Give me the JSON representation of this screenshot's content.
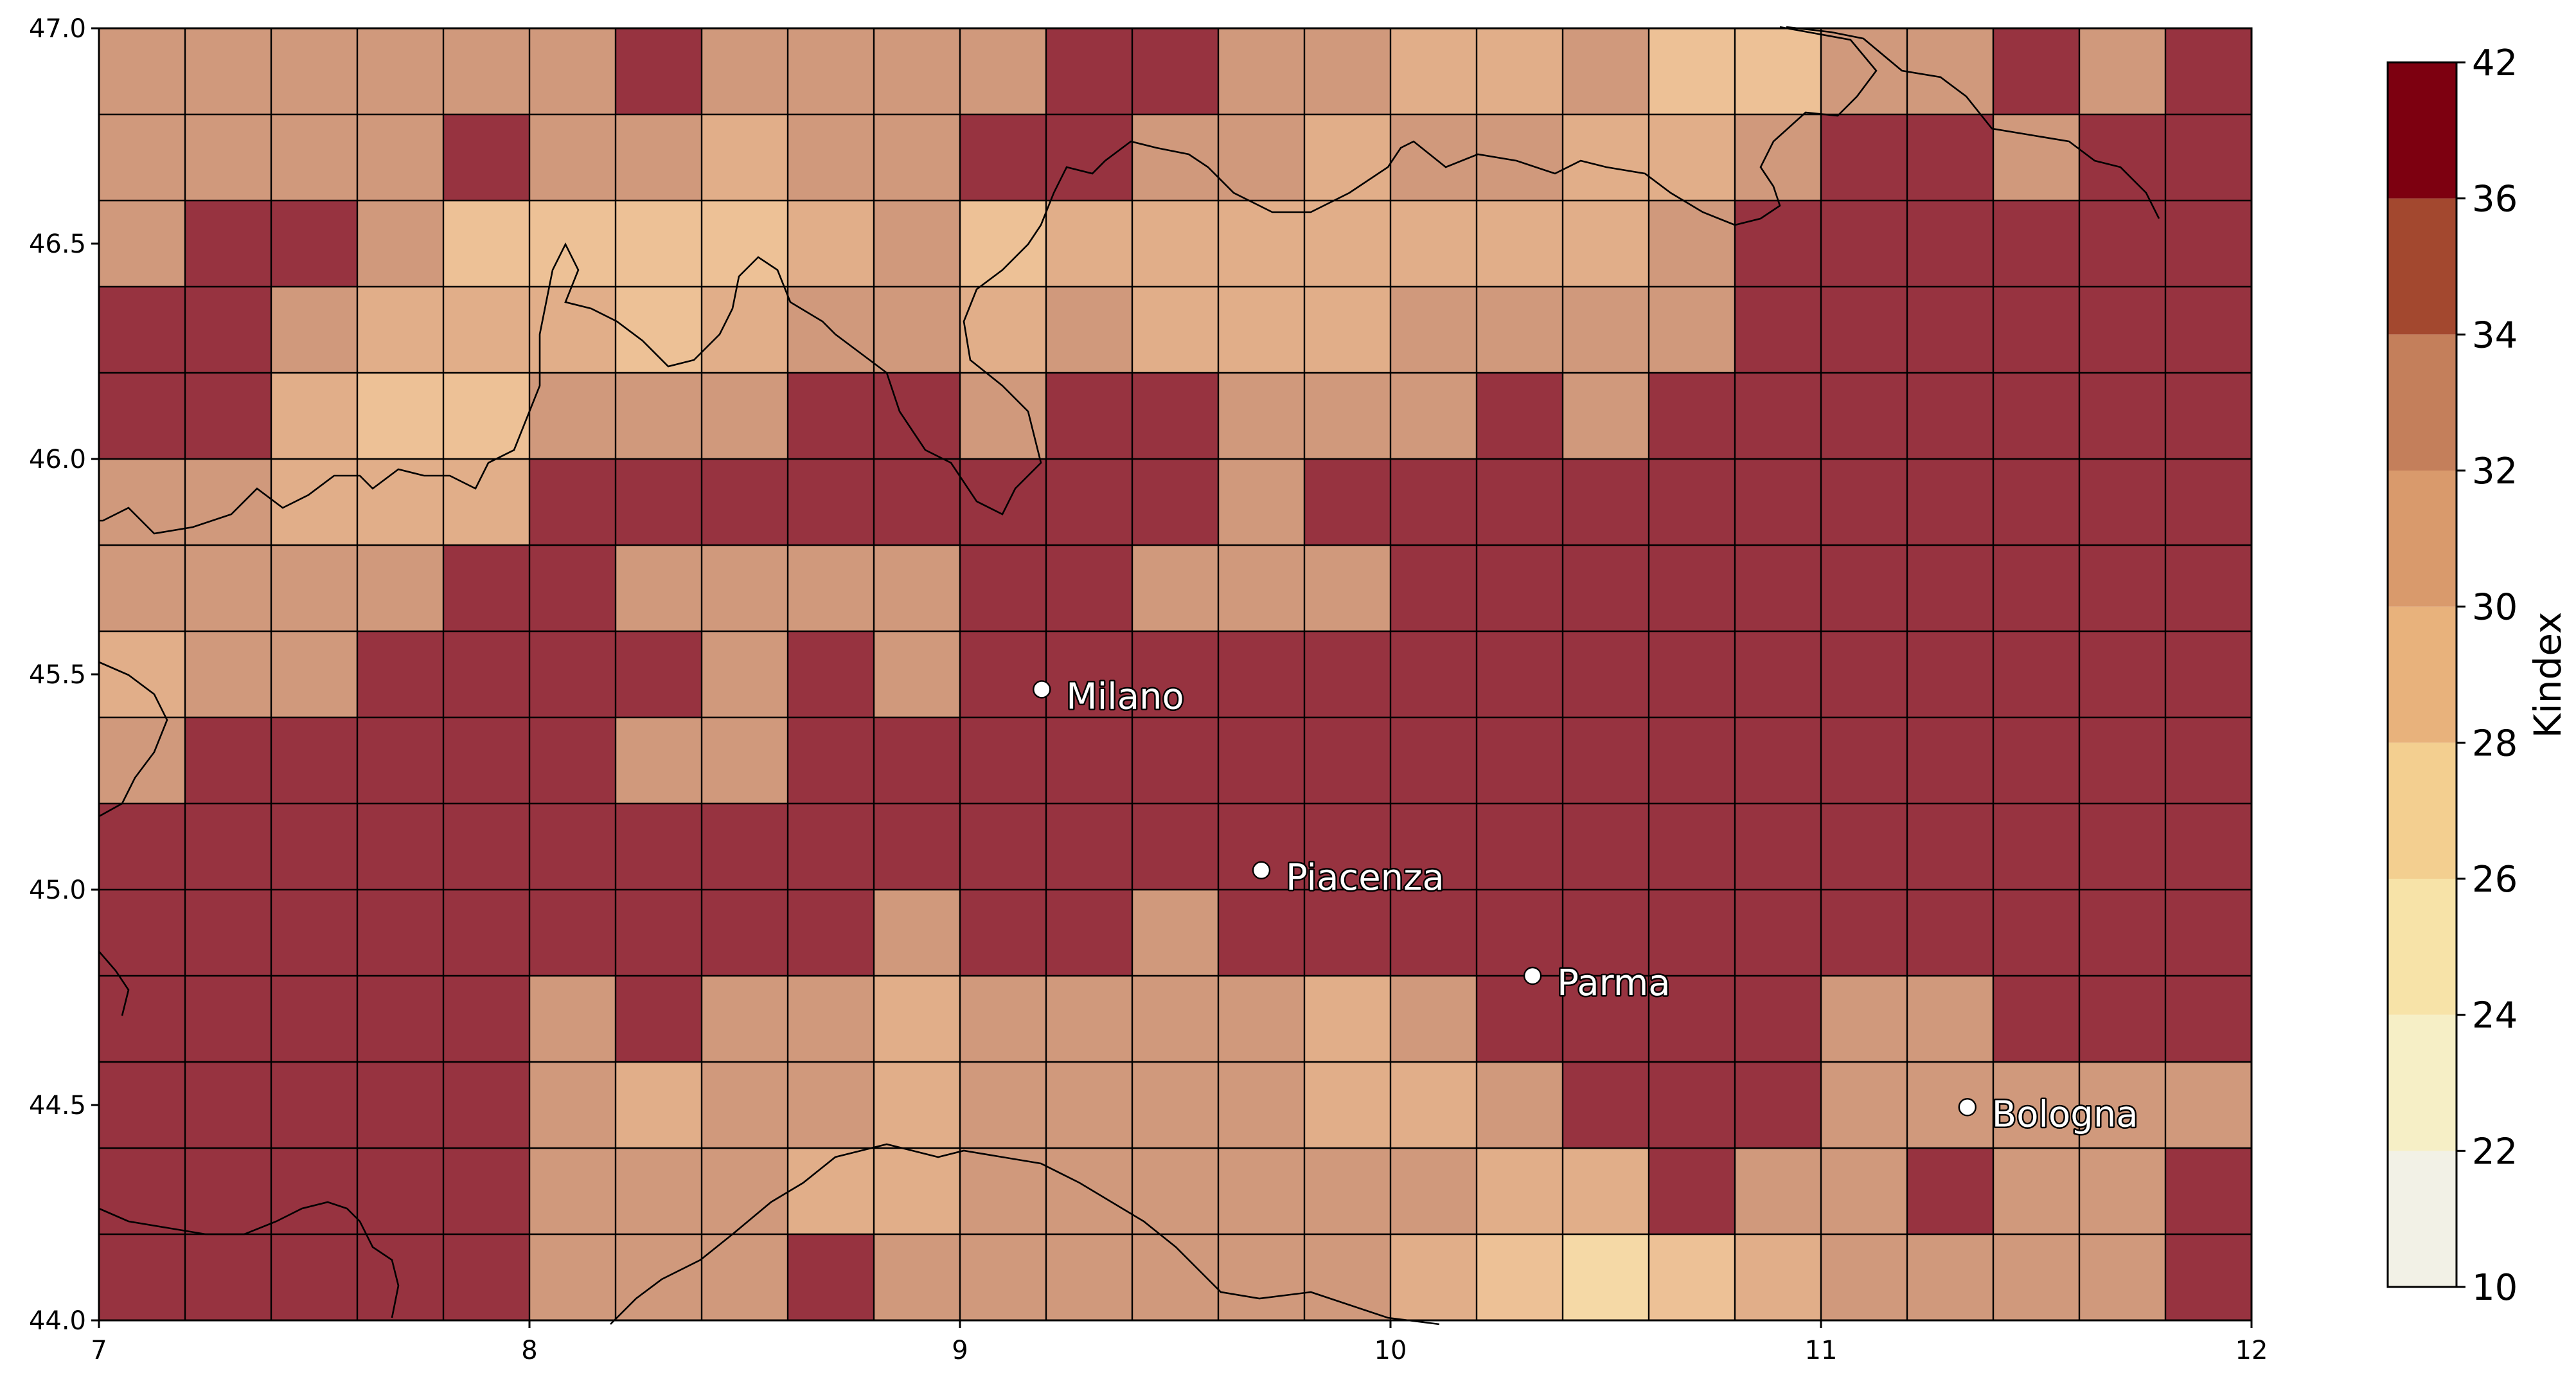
{
  "chart_data": {
    "type": "heatmap",
    "title": "",
    "xlabel": "",
    "ylabel": "",
    "xlim": [
      7,
      12
    ],
    "ylim": [
      44,
      47
    ],
    "cell_size_deg": 0.2,
    "x_ticks": [
      "7",
      "8",
      "9",
      "10",
      "11",
      "12"
    ],
    "y_ticks": [
      "44.0",
      "44.5",
      "45.0",
      "45.5",
      "46.0",
      "46.5",
      "47.0"
    ],
    "grid_rows_top_to_bottom": [
      [
        33,
        33,
        33,
        33,
        33,
        33,
        37,
        33,
        33,
        33,
        33,
        37,
        37,
        33,
        33,
        31,
        31,
        33,
        29,
        29,
        33,
        33,
        37,
        33,
        37
      ],
      [
        33,
        33,
        33,
        33,
        37,
        33,
        33,
        31,
        33,
        33,
        37,
        37,
        33,
        33,
        31,
        33,
        33,
        31,
        31,
        33,
        37,
        37,
        33,
        37,
        37
      ],
      [
        33,
        37,
        37,
        33,
        29,
        29,
        29,
        29,
        31,
        33,
        29,
        31,
        31,
        31,
        31,
        31,
        31,
        31,
        33,
        37,
        37,
        37,
        37,
        37,
        37
      ],
      [
        37,
        37,
        33,
        31,
        31,
        31,
        29,
        31,
        33,
        33,
        31,
        33,
        31,
        31,
        31,
        33,
        33,
        33,
        33,
        37,
        37,
        37,
        37,
        37,
        37
      ],
      [
        37,
        37,
        31,
        29,
        29,
        33,
        33,
        33,
        37,
        37,
        33,
        37,
        37,
        33,
        33,
        33,
        37,
        33,
        37,
        37,
        37,
        37,
        37,
        37,
        37
      ],
      [
        33,
        33,
        31,
        31,
        31,
        37,
        37,
        37,
        37,
        37,
        37,
        37,
        37,
        33,
        37,
        37,
        37,
        37,
        37,
        37,
        37,
        37,
        37,
        37,
        37
      ],
      [
        33,
        33,
        33,
        33,
        37,
        37,
        33,
        33,
        33,
        33,
        37,
        37,
        33,
        33,
        33,
        37,
        37,
        37,
        37,
        37,
        37,
        37,
        37,
        37,
        37
      ],
      [
        31,
        33,
        33,
        37,
        37,
        37,
        37,
        33,
        37,
        33,
        37,
        37,
        37,
        37,
        37,
        37,
        37,
        37,
        37,
        37,
        37,
        37,
        37,
        37,
        37
      ],
      [
        33,
        37,
        37,
        37,
        37,
        37,
        33,
        33,
        37,
        37,
        37,
        37,
        37,
        37,
        37,
        37,
        37,
        37,
        37,
        37,
        37,
        37,
        37,
        37,
        37
      ],
      [
        37,
        37,
        37,
        37,
        37,
        37,
        37,
        37,
        37,
        37,
        37,
        37,
        37,
        37,
        37,
        37,
        37,
        37,
        37,
        37,
        37,
        37,
        37,
        37,
        37
      ],
      [
        37,
        37,
        37,
        37,
        37,
        37,
        37,
        37,
        37,
        33,
        37,
        37,
        33,
        37,
        37,
        37,
        37,
        37,
        37,
        37,
        37,
        37,
        37,
        37,
        37
      ],
      [
        37,
        37,
        37,
        37,
        37,
        33,
        37,
        33,
        33,
        31,
        33,
        33,
        33,
        33,
        31,
        33,
        37,
        37,
        37,
        37,
        33,
        33,
        37,
        37,
        37
      ],
      [
        37,
        37,
        37,
        37,
        37,
        33,
        31,
        33,
        33,
        31,
        33,
        33,
        33,
        33,
        31,
        31,
        33,
        37,
        37,
        37,
        33,
        33,
        33,
        33,
        33
      ],
      [
        37,
        37,
        37,
        37,
        37,
        33,
        33,
        33,
        31,
        31,
        33,
        33,
        33,
        33,
        33,
        33,
        31,
        31,
        37,
        33,
        33,
        37,
        33,
        33,
        37
      ],
      [
        37,
        37,
        37,
        37,
        37,
        33,
        33,
        33,
        37,
        33,
        33,
        33,
        33,
        33,
        33,
        31,
        29,
        27,
        29,
        31,
        33,
        33,
        33,
        33,
        37
      ]
    ],
    "colorbar": {
      "label": "Kindex",
      "boundaries": [
        10,
        22,
        24,
        26,
        28,
        30,
        32,
        34,
        36,
        42
      ],
      "tick_labels": [
        "10",
        "22",
        "24",
        "26",
        "28",
        "30",
        "32",
        "34",
        "36",
        "42"
      ],
      "colors": [
        "#f2f1e6",
        "#f6efc6",
        "#f7e3a8",
        "#f3cf90",
        "#e8b27c",
        "#d99a6c",
        "#c47f5b",
        "#a3482f",
        "#7d0010"
      ],
      "placement": "right"
    },
    "cities": [
      {
        "name": "Milano",
        "lon": 9.19,
        "lat": 45.465
      },
      {
        "name": "Piacenza",
        "lon": 9.7,
        "lat": 45.045
      },
      {
        "name": "Parma",
        "lon": 10.33,
        "lat": 44.8
      },
      {
        "name": "Bologna",
        "lon": 11.34,
        "lat": 44.495
      }
    ],
    "cell_alpha": 0.8,
    "grid": true
  }
}
